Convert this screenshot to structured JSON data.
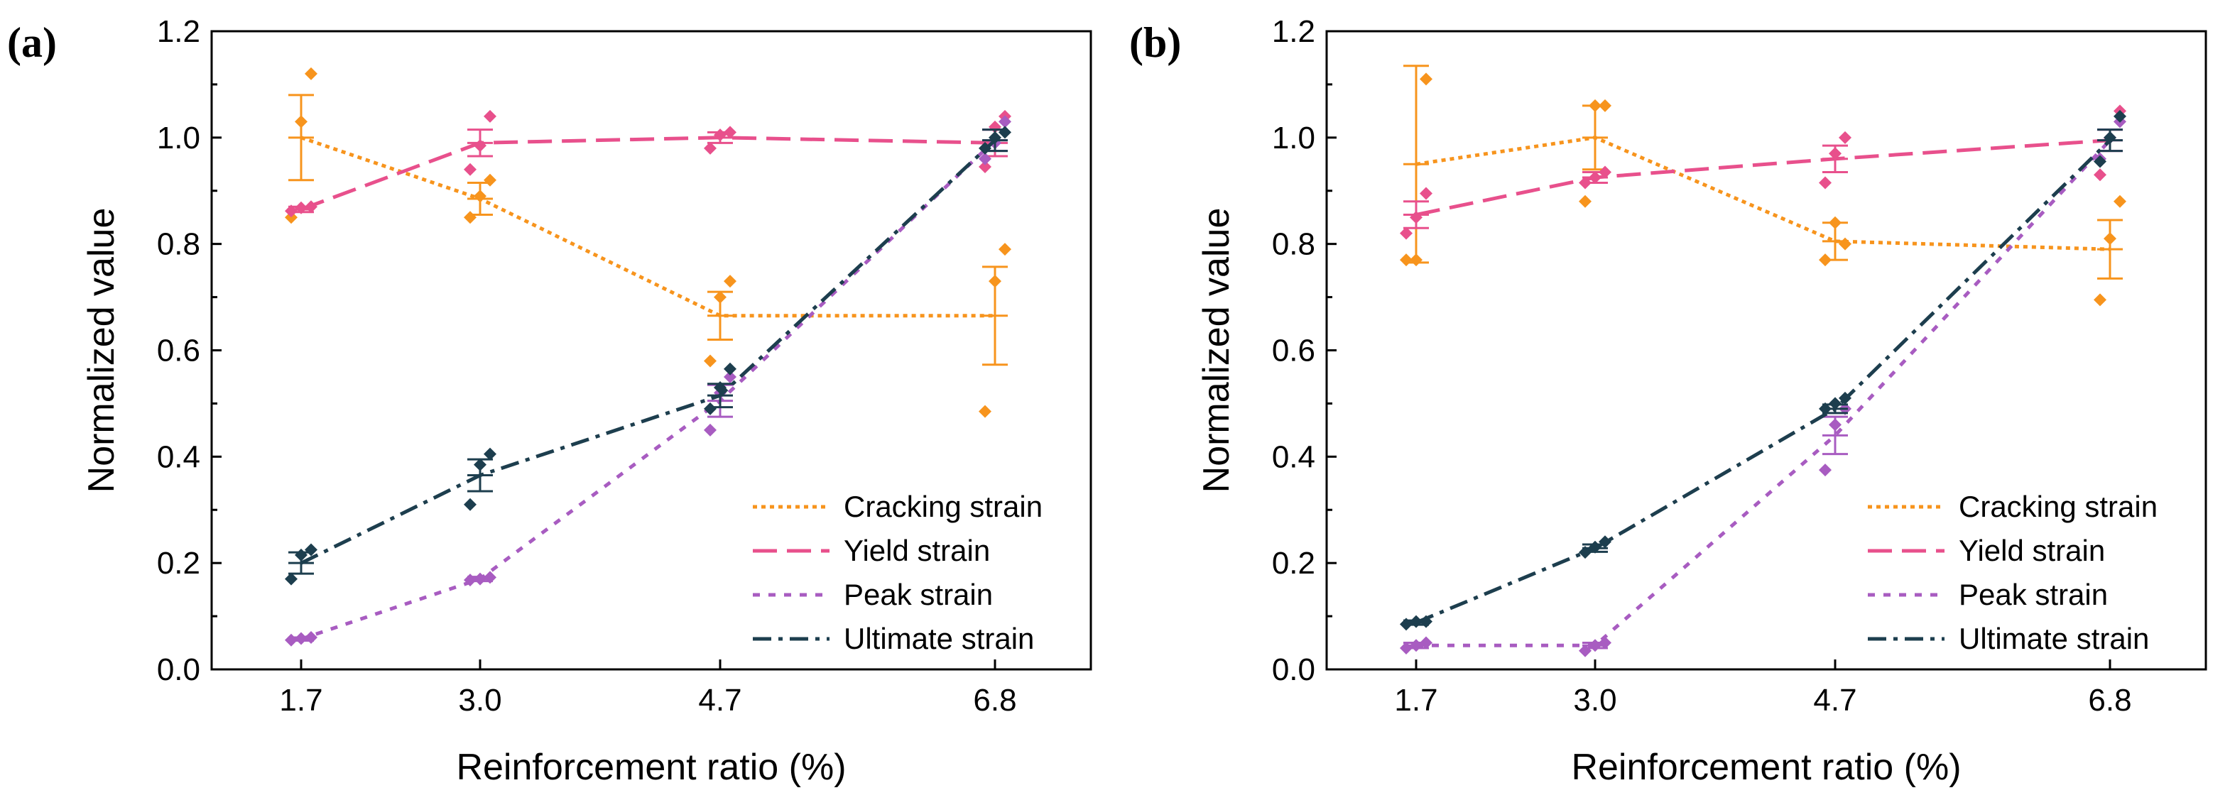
{
  "colors": {
    "cracking": "#f7941d",
    "yield": "#e8508c",
    "peak": "#a85cc1",
    "ultimate": "#1d3e4e",
    "axis": "#000000"
  },
  "series_styles": {
    "cracking": "dotted",
    "yield": "long-dash",
    "peak": "short-dash",
    "ultimate": "dash-dot"
  },
  "chart_data": [
    {
      "type": "line",
      "panel_label": "(a)",
      "xlabel": "Reinforcement ratio (%)",
      "ylabel": "Normalized value",
      "categories": [
        "1.7",
        "3.0",
        "4.7",
        "6.8"
      ],
      "yticks": [
        "0.0",
        "0.2",
        "0.4",
        "0.6",
        "0.8",
        "1.0",
        "1.2"
      ],
      "ylim": [
        0,
        1.2
      ],
      "legend_position": "bottom-right",
      "series": [
        {
          "key": "cracking",
          "name": "Cracking strain",
          "values": [
            1.0,
            0.885,
            0.665,
            0.665
          ],
          "errors": [
            0.08,
            0.03,
            0.045,
            0.092
          ],
          "points": [
            [
              0.85,
              1.03,
              1.12
            ],
            [
              0.85,
              0.89,
              0.92
            ],
            [
              0.58,
              0.7,
              0.73
            ],
            [
              0.485,
              0.73,
              0.79
            ]
          ]
        },
        {
          "key": "yield",
          "name": "Yield strain",
          "values": [
            0.865,
            0.99,
            1.0,
            0.99
          ],
          "errors": [
            0.005,
            0.025,
            0.01,
            0.025
          ],
          "points": [
            [
              0.862,
              0.868,
              0.87
            ],
            [
              0.94,
              0.985,
              1.04
            ],
            [
              0.98,
              1.005,
              1.01
            ],
            [
              0.945,
              1.02,
              1.04
            ]
          ]
        },
        {
          "key": "peak",
          "name": "Peak strain",
          "values": [
            0.057,
            0.17,
            0.505,
            0.995
          ],
          "errors": [
            0.003,
            0.004,
            0.03,
            0.02
          ],
          "points": [
            [
              0.055,
              0.058,
              0.06
            ],
            [
              0.168,
              0.17,
              0.173
            ],
            [
              0.45,
              0.52,
              0.55
            ],
            [
              0.96,
              0.99,
              1.03
            ]
          ]
        },
        {
          "key": "ultimate",
          "name": "Ultimate strain",
          "values": [
            0.2,
            0.365,
            0.515,
            0.995
          ],
          "errors": [
            0.02,
            0.03,
            0.022,
            0.02
          ],
          "points": [
            [
              0.17,
              0.215,
              0.225
            ],
            [
              0.31,
              0.385,
              0.405
            ],
            [
              0.49,
              0.53,
              0.565
            ],
            [
              0.98,
              1.0,
              1.01
            ]
          ]
        }
      ]
    },
    {
      "type": "line",
      "panel_label": "(b)",
      "xlabel": "Reinforcement ratio (%)",
      "ylabel": "Normalized value",
      "categories": [
        "1.7",
        "3.0",
        "4.7",
        "6.8"
      ],
      "yticks": [
        "0.0",
        "0.2",
        "0.4",
        "0.6",
        "0.8",
        "1.0",
        "1.2"
      ],
      "ylim": [
        0,
        1.2
      ],
      "legend_position": "bottom-right",
      "series": [
        {
          "key": "cracking",
          "name": "Cracking strain",
          "values": [
            0.95,
            1.0,
            0.805,
            0.79
          ],
          "errors": [
            0.185,
            0.06,
            0.035,
            0.055
          ],
          "points": [
            [
              0.77,
              0.77,
              1.11
            ],
            [
              0.88,
              1.06,
              1.06
            ],
            [
              0.77,
              0.84,
              0.8
            ],
            [
              0.695,
              0.81,
              0.88
            ]
          ]
        },
        {
          "key": "yield",
          "name": "Yield strain",
          "values": [
            0.855,
            0.925,
            0.96,
            0.995
          ],
          "errors": [
            0.025,
            0.01,
            0.025,
            0.02
          ],
          "points": [
            [
              0.82,
              0.85,
              0.895
            ],
            [
              0.915,
              0.925,
              0.935
            ],
            [
              0.915,
              0.97,
              1.0
            ],
            [
              0.93,
              1.0,
              1.05
            ]
          ]
        },
        {
          "key": "peak",
          "name": "Peak strain",
          "values": [
            0.045,
            0.045,
            0.44,
            0.995
          ],
          "errors": [
            0.005,
            0.005,
            0.035,
            0.02
          ],
          "points": [
            [
              0.04,
              0.045,
              0.05
            ],
            [
              0.035,
              0.045,
              0.05
            ],
            [
              0.375,
              0.46,
              0.49
            ],
            [
              0.96,
              1.0,
              1.03
            ]
          ]
        },
        {
          "key": "ultimate",
          "name": "Ultimate strain",
          "values": [
            0.088,
            0.228,
            0.49,
            0.995
          ],
          "errors": [
            0.004,
            0.007,
            0.008,
            0.02
          ],
          "points": [
            [
              0.085,
              0.09,
              0.09
            ],
            [
              0.22,
              0.23,
              0.24
            ],
            [
              0.49,
              0.5,
              0.51
            ],
            [
              0.955,
              1.0,
              1.04
            ]
          ]
        }
      ]
    }
  ]
}
